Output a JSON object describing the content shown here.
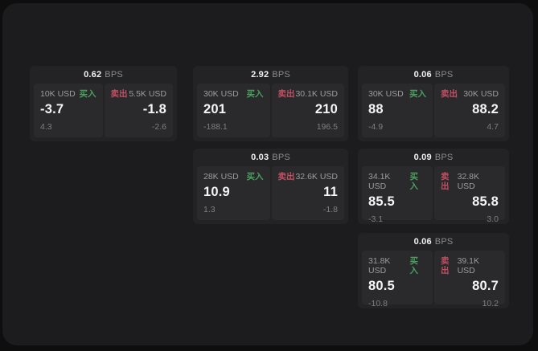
{
  "labels": {
    "buy": "买入",
    "sell": "卖出",
    "bps_suffix": "BPS"
  },
  "colors": {
    "outer_background": "#0e0e0f",
    "panel_background": "#1c1c1e",
    "card_background": "#232326",
    "tile_background": "#2a2a2d",
    "buy_green": "#4ba05f",
    "sell_red": "#c14f62",
    "value_white": "#f5f5f6",
    "label_gray": "#9c9c9f",
    "sub_gray": "#7e7e81"
  },
  "cards": [
    {
      "bps": "0.62",
      "buy": {
        "amount": "10K USD",
        "value": "-3.7",
        "change": "4.3"
      },
      "sell": {
        "amount": "5.5K USD",
        "value": "-1.8",
        "change": "-2.6"
      }
    },
    {
      "bps": "2.92",
      "buy": {
        "amount": "30K USD",
        "value": "201",
        "change": "-188.1"
      },
      "sell": {
        "amount": "30.1K USD",
        "value": "210",
        "change": "196.5"
      }
    },
    {
      "bps": "0.06",
      "buy": {
        "amount": "30K USD",
        "value": "88",
        "change": "-4.9"
      },
      "sell": {
        "amount": "30K USD",
        "value": "88.2",
        "change": "4.7"
      }
    },
    {
      "bps": "0.03",
      "buy": {
        "amount": "28K USD",
        "value": "10.9",
        "change": "1.3"
      },
      "sell": {
        "amount": "32.6K USD",
        "value": "11",
        "change": "-1.8"
      }
    },
    {
      "bps": "0.09",
      "buy": {
        "amount": "34.1K USD",
        "value": "85.5",
        "change": "-3.1"
      },
      "sell": {
        "amount": "32.8K USD",
        "value": "85.8",
        "change": "3.0"
      }
    },
    {
      "bps": "0.06",
      "buy": {
        "amount": "31.8K USD",
        "value": "80.5",
        "change": "-10.8"
      },
      "sell": {
        "amount": "39.1K USD",
        "value": "80.7",
        "change": "10.2"
      }
    }
  ]
}
